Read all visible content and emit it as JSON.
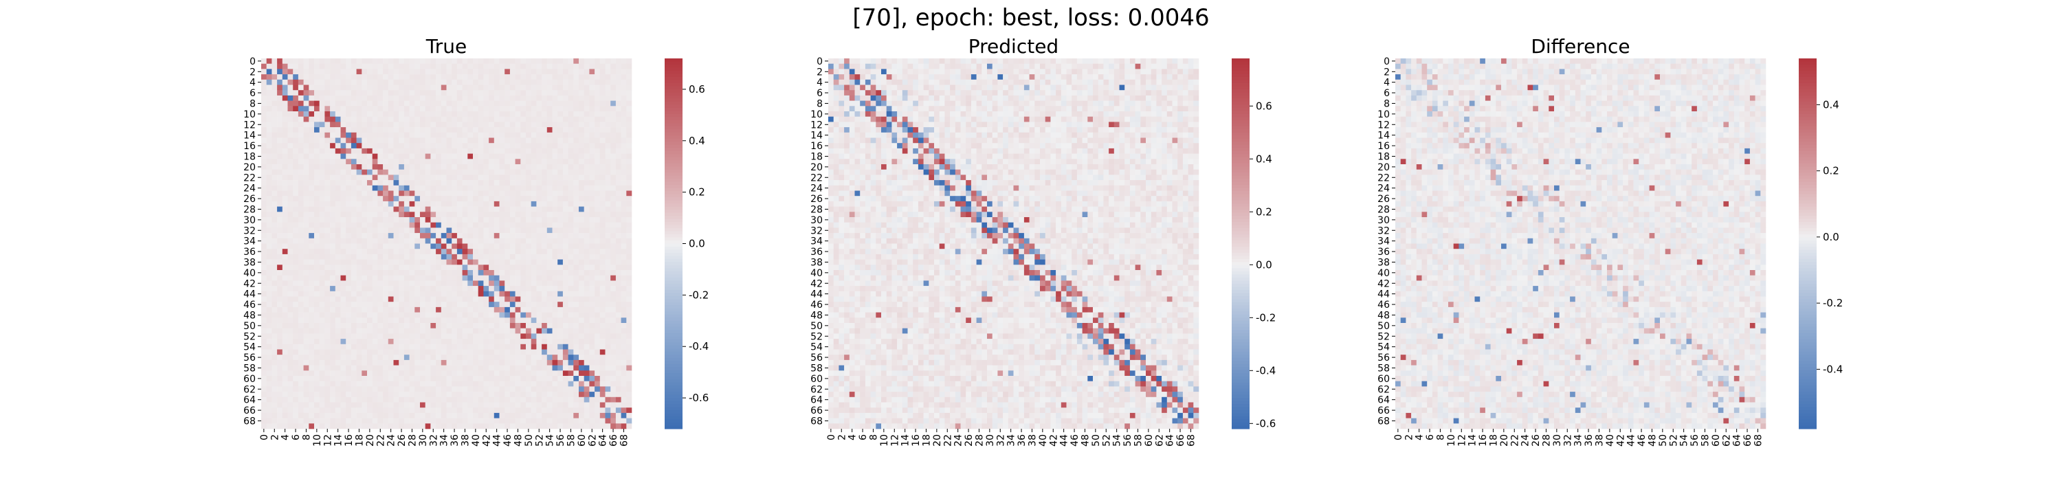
{
  "suptitle": "[70], epoch: best, loss: 0.0046",
  "palette": {
    "low": "#3b6db3",
    "mid": "#f1f1f2",
    "high": "#b3343c"
  },
  "chart_data": [
    {
      "type": "heatmap",
      "title": "True",
      "size": 70,
      "y_tick_labels": [
        "0",
        "2",
        "4",
        "6",
        "8",
        "10",
        "12",
        "14",
        "16",
        "18",
        "20",
        "22",
        "24",
        "26",
        "28",
        "30",
        "32",
        "34",
        "36",
        "38",
        "40",
        "42",
        "44",
        "46",
        "48",
        "50",
        "52",
        "54",
        "56",
        "58",
        "60",
        "62",
        "64",
        "66",
        "68"
      ],
      "x_tick_labels": [
        "0",
        "2",
        "4",
        "6",
        "8",
        "10",
        "12",
        "14",
        "16",
        "18",
        "20",
        "22",
        "24",
        "26",
        "28",
        "30",
        "32",
        "34",
        "36",
        "38",
        "40",
        "42",
        "44",
        "46",
        "48",
        "50",
        "52",
        "54",
        "56",
        "58",
        "60",
        "62",
        "64",
        "66",
        "68"
      ],
      "value_range": [
        -0.72,
        0.72
      ],
      "colorbar_ticks": [
        "0.6",
        "0.4",
        "0.2",
        "0.0",
        "-0.2",
        "-0.4",
        "-0.6"
      ],
      "colorbar_values": [
        0.6,
        0.4,
        0.2,
        0.0,
        -0.2,
        -0.4,
        -0.6
      ],
      "pattern": "band-diagonal",
      "seed": 11
    },
    {
      "type": "heatmap",
      "title": "Predicted",
      "size": 70,
      "y_tick_labels": [
        "0",
        "2",
        "4",
        "6",
        "8",
        "10",
        "12",
        "14",
        "16",
        "18",
        "20",
        "22",
        "24",
        "26",
        "28",
        "30",
        "32",
        "34",
        "36",
        "38",
        "40",
        "42",
        "44",
        "46",
        "48",
        "50",
        "52",
        "54",
        "56",
        "58",
        "60",
        "62",
        "64",
        "66",
        "68"
      ],
      "x_tick_labels": [
        "0",
        "2",
        "4",
        "6",
        "8",
        "10",
        "12",
        "14",
        "16",
        "18",
        "20",
        "22",
        "24",
        "26",
        "28",
        "30",
        "32",
        "34",
        "36",
        "38",
        "40",
        "42",
        "44",
        "46",
        "48",
        "50",
        "52",
        "54",
        "56",
        "58",
        "60",
        "62",
        "64",
        "66",
        "68"
      ],
      "value_range": [
        -0.62,
        0.78
      ],
      "colorbar_ticks": [
        "0.6",
        "0.4",
        "0.2",
        "0.0",
        "-0.2",
        "-0.4",
        "-0.6"
      ],
      "colorbar_values": [
        0.6,
        0.4,
        0.2,
        0.0,
        -0.2,
        -0.4,
        -0.6
      ],
      "pattern": "band-diagonal-noisy",
      "seed": 23
    },
    {
      "type": "heatmap",
      "title": "Difference",
      "size": 70,
      "y_tick_labels": [
        "0",
        "2",
        "4",
        "6",
        "8",
        "10",
        "12",
        "14",
        "16",
        "18",
        "20",
        "22",
        "24",
        "26",
        "28",
        "30",
        "32",
        "34",
        "36",
        "38",
        "40",
        "42",
        "44",
        "46",
        "48",
        "50",
        "52",
        "54",
        "56",
        "58",
        "60",
        "62",
        "64",
        "66",
        "68"
      ],
      "x_tick_labels": [
        "0",
        "2",
        "4",
        "6",
        "8",
        "10",
        "12",
        "14",
        "16",
        "18",
        "20",
        "22",
        "24",
        "26",
        "28",
        "30",
        "32",
        "34",
        "36",
        "38",
        "40",
        "42",
        "44",
        "46",
        "48",
        "50",
        "52",
        "54",
        "56",
        "58",
        "60",
        "62",
        "64",
        "66",
        "68"
      ],
      "value_range": [
        -0.58,
        0.54
      ],
      "colorbar_ticks": [
        "0.4",
        "0.2",
        "0.0",
        "-0.2",
        "-0.4"
      ],
      "colorbar_values": [
        0.4,
        0.2,
        0.0,
        -0.2,
        -0.4
      ],
      "pattern": "residual",
      "seed": 37
    }
  ]
}
